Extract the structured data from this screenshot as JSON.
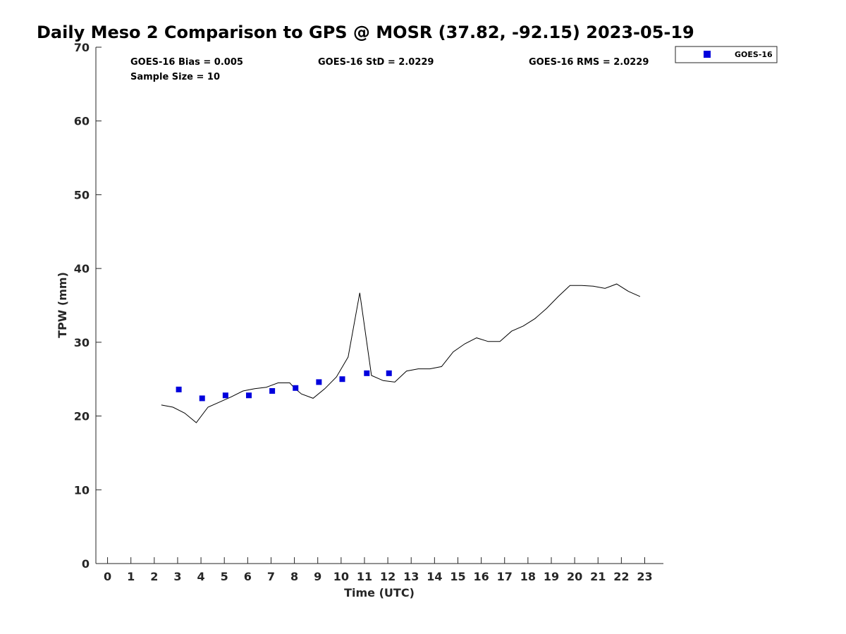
{
  "chart_data": {
    "type": "scatter",
    "title": "Daily Meso 2 Comparison to GPS @ MOSR (37.82, -92.15) 2023-05-19",
    "xlabel": "Time (UTC)",
    "ylabel": "TPW (mm)",
    "xlim": [
      -0.5,
      23.8
    ],
    "ylim": [
      0,
      70
    ],
    "x_ticks": [
      "0",
      "1",
      "2",
      "3",
      "4",
      "5",
      "6",
      "7",
      "8",
      "9",
      "10",
      "11",
      "12",
      "13",
      "14",
      "15",
      "16",
      "17",
      "18",
      "19",
      "20",
      "21",
      "22",
      "23"
    ],
    "y_ticks": [
      "0",
      "10",
      "20",
      "30",
      "40",
      "50",
      "60",
      "70"
    ],
    "grid": false,
    "legend_position": "top-right outside",
    "stats": {
      "bias": "GOES-16 Bias = 0.005",
      "std": "GOES-16 StD = 2.0229",
      "rms": "GOES-16 RMS = 2.0229",
      "sample": "Sample Size = 10"
    },
    "series": [
      {
        "name": "GOES-16",
        "type": "scatter",
        "color": "#0000dd",
        "x": [
          3.05,
          4.05,
          5.05,
          6.05,
          7.05,
          8.05,
          9.05,
          10.05,
          11.1,
          12.05
        ],
        "y": [
          23.6,
          22.4,
          22.8,
          22.8,
          23.4,
          23.8,
          24.6,
          25.0,
          25.8,
          25.8
        ]
      },
      {
        "type": "line",
        "color": "#000000",
        "x": [
          2.3,
          2.8,
          3.3,
          3.8,
          4.3,
          4.8,
          5.3,
          5.8,
          6.3,
          6.8,
          7.3,
          7.8,
          8.0,
          8.3,
          8.8,
          9.3,
          9.8,
          10.3,
          10.8,
          11.3,
          11.8,
          12.3,
          12.8,
          13.3,
          13.8,
          14.3,
          14.8,
          15.3,
          15.8,
          16.3,
          16.8,
          17.3,
          17.8,
          18.3,
          18.8,
          19.3,
          19.8,
          20.3,
          20.8,
          21.3,
          21.8,
          22.3,
          22.8
        ],
        "y": [
          21.5,
          21.2,
          20.4,
          19.1,
          21.2,
          21.9,
          22.6,
          23.4,
          23.7,
          23.9,
          24.5,
          24.5,
          23.8,
          23.0,
          22.4,
          23.7,
          25.3,
          28.0,
          36.7,
          25.5,
          24.8,
          24.6,
          26.1,
          26.4,
          26.4,
          26.7,
          28.7,
          29.8,
          30.6,
          30.1,
          30.1,
          31.5,
          32.2,
          33.2,
          34.6,
          36.2,
          37.7,
          37.7,
          37.6,
          37.3,
          37.9,
          36.9,
          36.2
        ]
      }
    ]
  }
}
